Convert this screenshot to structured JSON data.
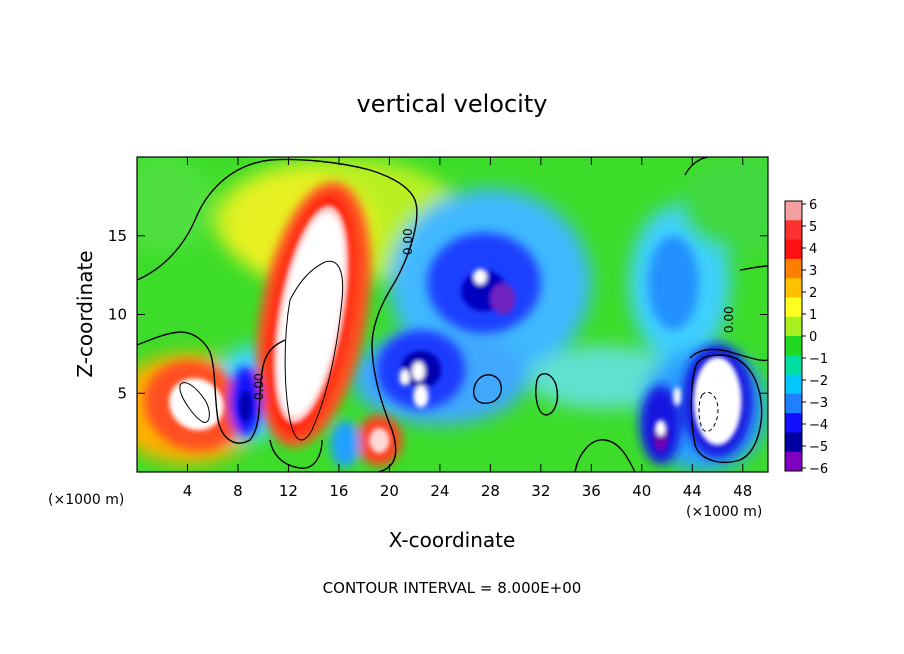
{
  "chart_data": {
    "type": "heatmap",
    "title": "vertical velocity",
    "xlabel": "X-coordinate",
    "ylabel": "Z-coordinate",
    "x_unit_note": "(×1000 m)",
    "footer": "CONTOUR INTERVAL = 8.000E+00",
    "x_ticks": [
      "4",
      "8",
      "12",
      "16",
      "20",
      "24",
      "28",
      "32",
      "36",
      "40",
      "44",
      "48"
    ],
    "y_ticks": [
      "5",
      "10",
      "15"
    ],
    "xlim": [
      0,
      50
    ],
    "ylim": [
      0,
      20
    ],
    "contour_label": "0.00",
    "colorbar": {
      "levels": [
        "6",
        "5",
        "4",
        "3",
        "2",
        "1",
        "0",
        "−1",
        "−2",
        "−3",
        "−4",
        "−5",
        "−6"
      ],
      "colors": [
        "#f4a0a0",
        "#ff3030",
        "#ff1010",
        "#ff7f00",
        "#ffc000",
        "#ffff20",
        "#a8f020",
        "#20d820",
        "#00e0a0",
        "#00c8ff",
        "#1e7fff",
        "#1010ff",
        "#0000a0",
        "#8000c0"
      ]
    },
    "features": [
      {
        "name": "updraft-core-left",
        "x": 4.5,
        "z": 4.2,
        "value": 6
      },
      {
        "name": "updraft-main",
        "x": 13.5,
        "z": 9.0,
        "value": 6
      },
      {
        "name": "updraft-small",
        "x": 19.2,
        "z": 2.0,
        "value": 5
      },
      {
        "name": "downdraft-mid",
        "x": 27.5,
        "z": 11.5,
        "value": -5
      },
      {
        "name": "downdraft-22",
        "x": 22.5,
        "z": 6.0,
        "value": -6
      },
      {
        "name": "downdraft-8",
        "x": 8.5,
        "z": 4.5,
        "value": -5
      },
      {
        "name": "downdraft-right",
        "x": 46.0,
        "z": 4.5,
        "value": -6
      },
      {
        "name": "downdraft-41",
        "x": 41.5,
        "z": 2.5,
        "value": -6
      }
    ]
  }
}
